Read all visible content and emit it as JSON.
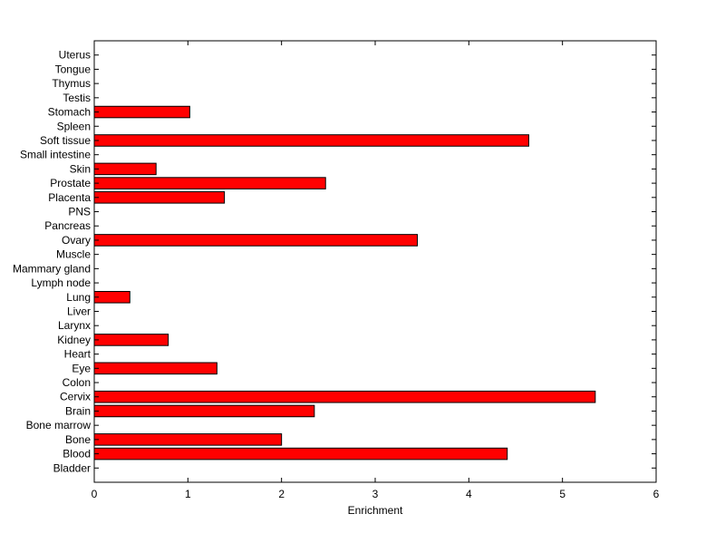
{
  "chart_data": {
    "type": "bar",
    "orientation": "horizontal",
    "categories": [
      "Bladder",
      "Blood",
      "Bone",
      "Bone marrow",
      "Brain",
      "Cervix",
      "Colon",
      "Eye",
      "Heart",
      "Kidney",
      "Larynx",
      "Liver",
      "Lung",
      "Lymph node",
      "Mammary gland",
      "Muscle",
      "Ovary",
      "Pancreas",
      "PNS",
      "Placenta",
      "Prostate",
      "Skin",
      "Small intestine",
      "Soft tissue",
      "Spleen",
      "Stomach",
      "Testis",
      "Thymus",
      "Tongue",
      "Uterus"
    ],
    "values": [
      0,
      4.41,
      2.0,
      0,
      2.35,
      5.35,
      0,
      1.31,
      0,
      0.79,
      0,
      0,
      0.38,
      0,
      0,
      0,
      3.45,
      0,
      0,
      1.39,
      2.47,
      0.66,
      0,
      4.64,
      0,
      1.02,
      0,
      0,
      0,
      0
    ],
    "xlabel": "Enrichment",
    "ylabel": "",
    "title": "",
    "xlim": [
      0,
      6
    ],
    "xticks": [
      "0",
      "1",
      "2",
      "3",
      "4",
      "5",
      "6"
    ],
    "bar_color": "#ff0000",
    "edge_color": "#000000",
    "grid": false,
    "legend": "none"
  }
}
